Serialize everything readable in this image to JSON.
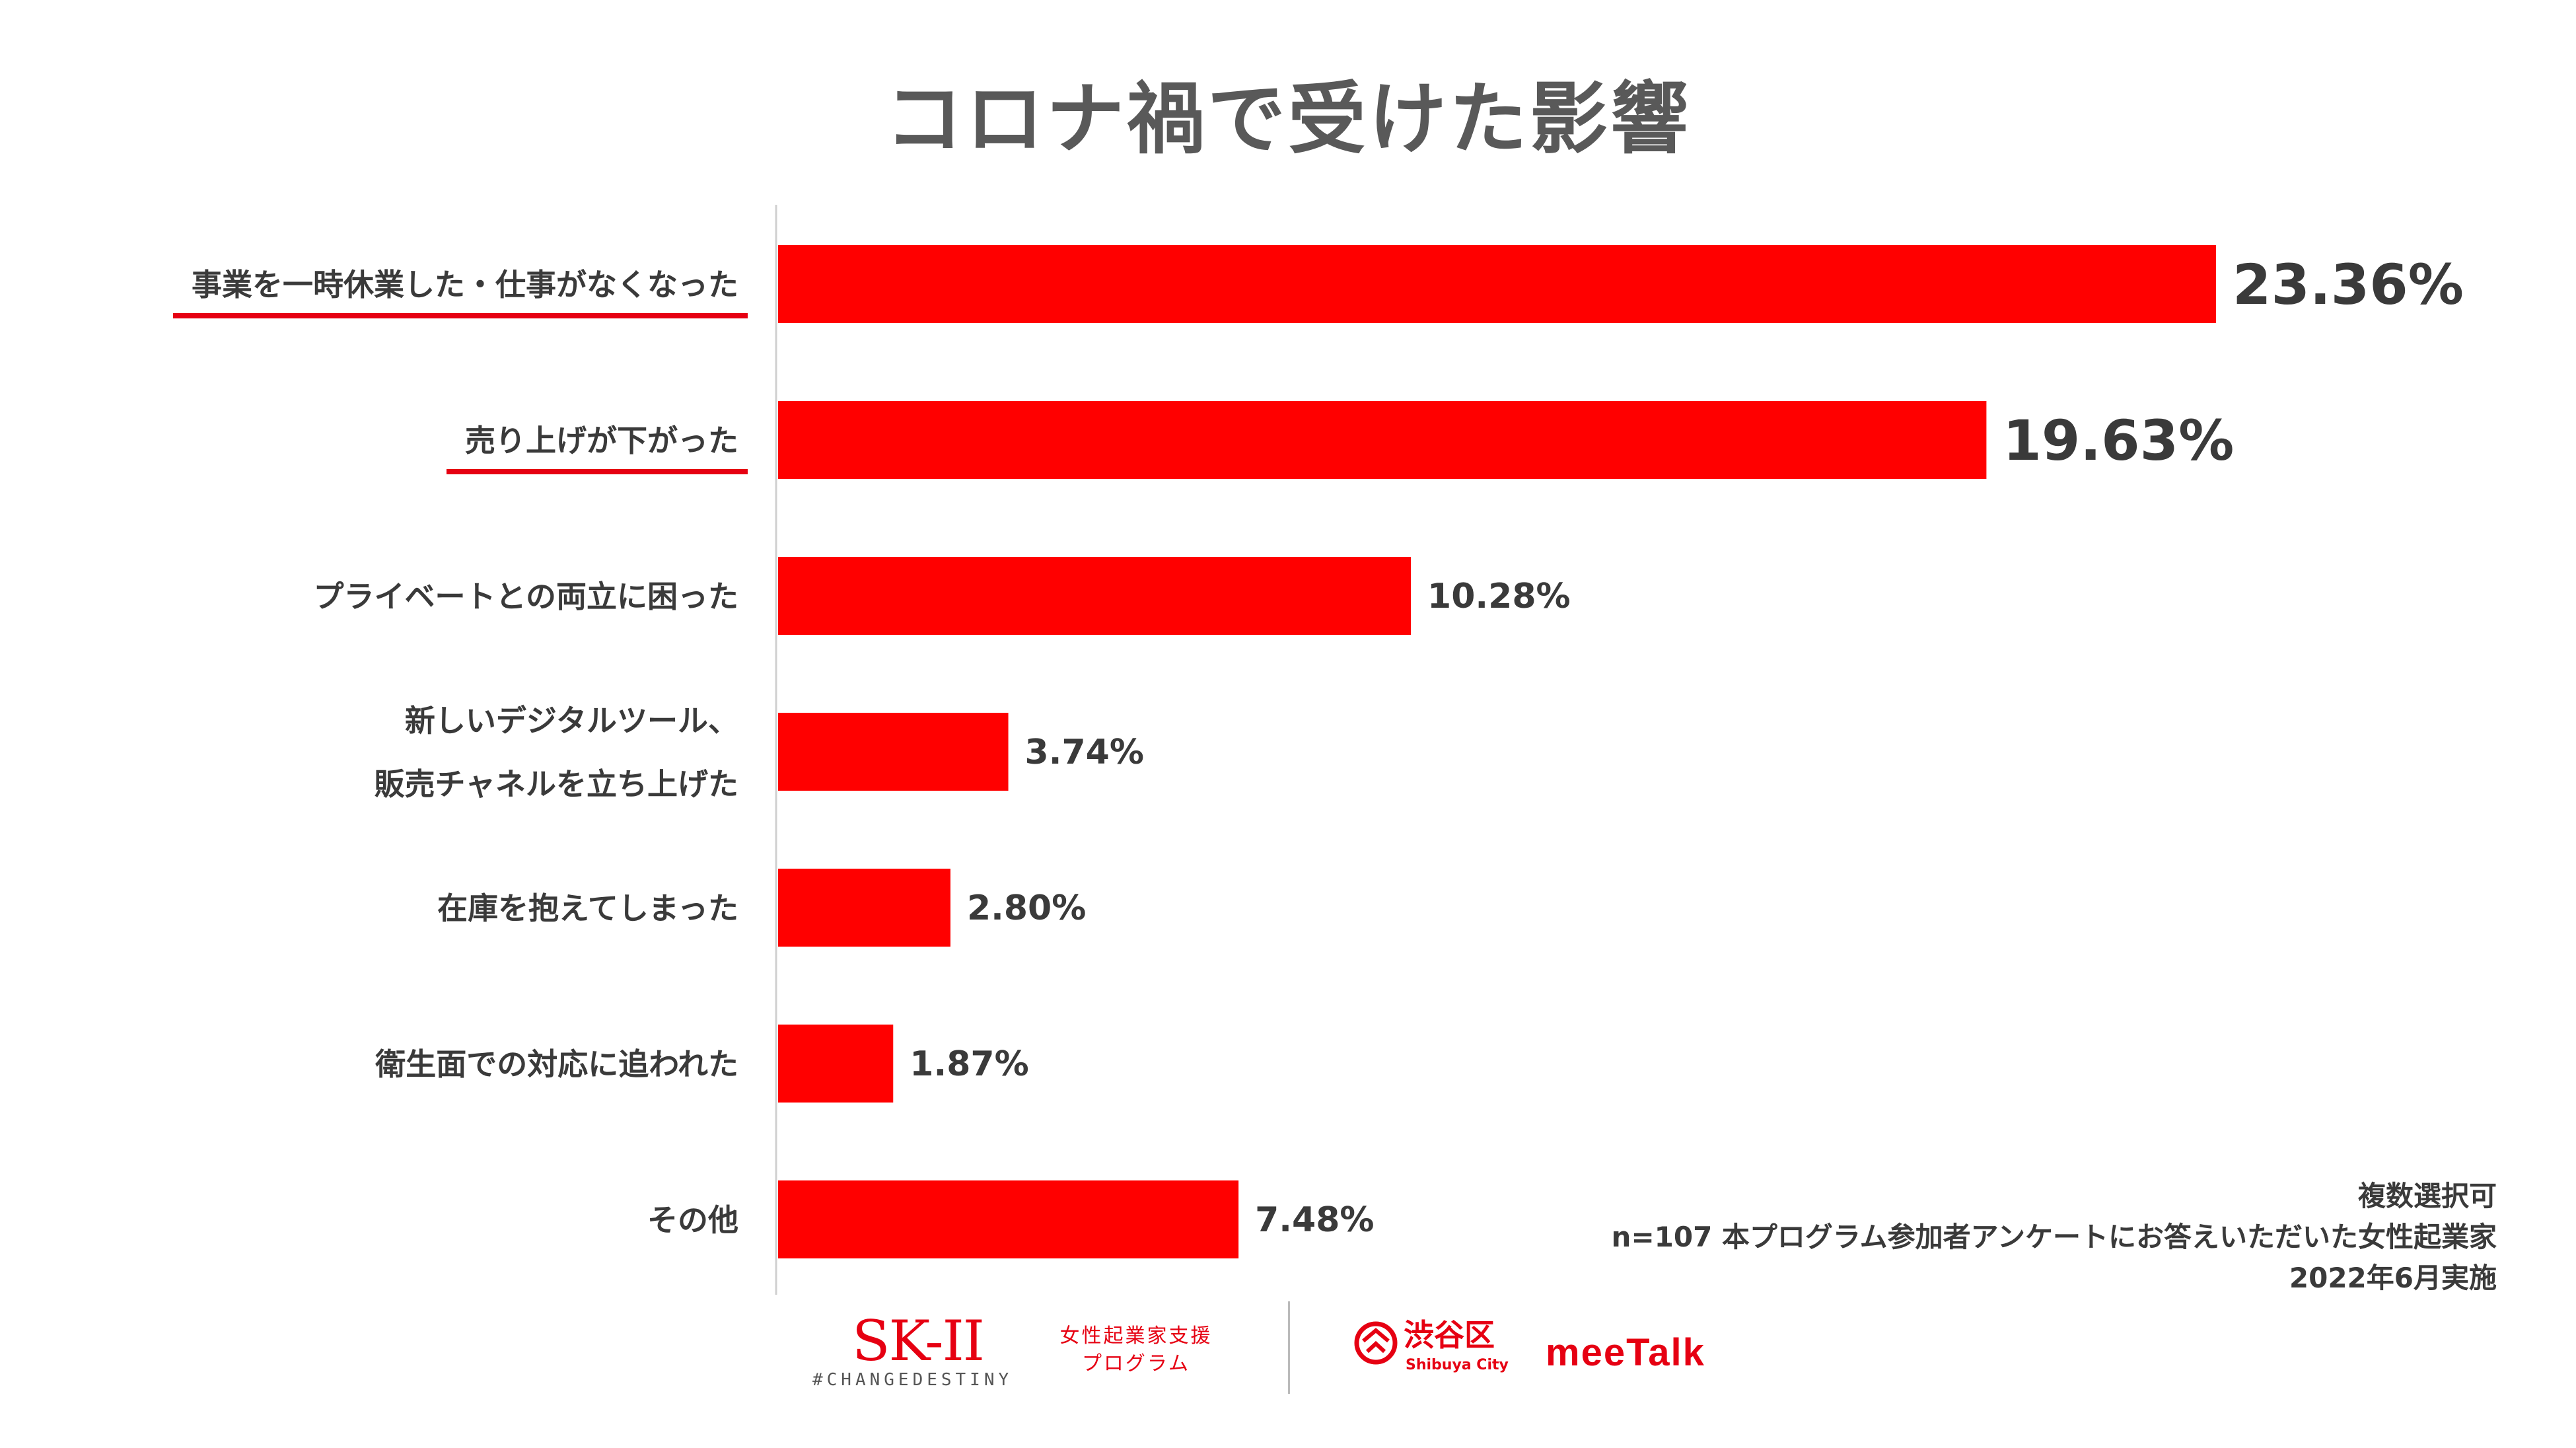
{
  "title": "コロナ禍で受けた影響",
  "chart_data": {
    "type": "bar",
    "orientation": "horizontal",
    "title": "コロナ禍で受けた影響",
    "unit": "%",
    "categories": [
      [
        "事業を一時休業した・仕事がなくなった"
      ],
      [
        "売り上げが下がった"
      ],
      [
        "プライベートとの両立に困った"
      ],
      [
        "新しいデジタルツール、",
        "販売チャネルを立ち上げた"
      ],
      [
        "在庫を抱えてしまった"
      ],
      [
        "衛生面での対応に追われた"
      ],
      [
        "その他"
      ]
    ],
    "values": [
      23.36,
      19.63,
      10.28,
      3.74,
      2.8,
      1.87,
      7.48
    ],
    "value_labels": [
      "23.36%",
      "19.63%",
      "10.28%",
      "3.74%",
      "2.80%",
      "1.87%",
      "7.48%"
    ],
    "highlighted": [
      true,
      true,
      false,
      false,
      false,
      false,
      false
    ],
    "bar_color": "#ff0000",
    "highlight_underline_color": "#e60012",
    "grid": false
  },
  "note": {
    "line1": "複数選択可",
    "line2": "n=107 本プログラム参加者アンケートにお答えいただいた女性起業家",
    "line3": "2022年6月実施"
  },
  "logos": {
    "skii_mark": "SK-II",
    "skii_tag": "#CHANGEDESTINY",
    "program_line1": "女性起業家支援",
    "program_line2": "プログラム",
    "shibuya_name": "渋谷区",
    "shibuya_sub": "Shibuya City",
    "meetalk": "meeTalk",
    "brand_color": "#e60012"
  }
}
